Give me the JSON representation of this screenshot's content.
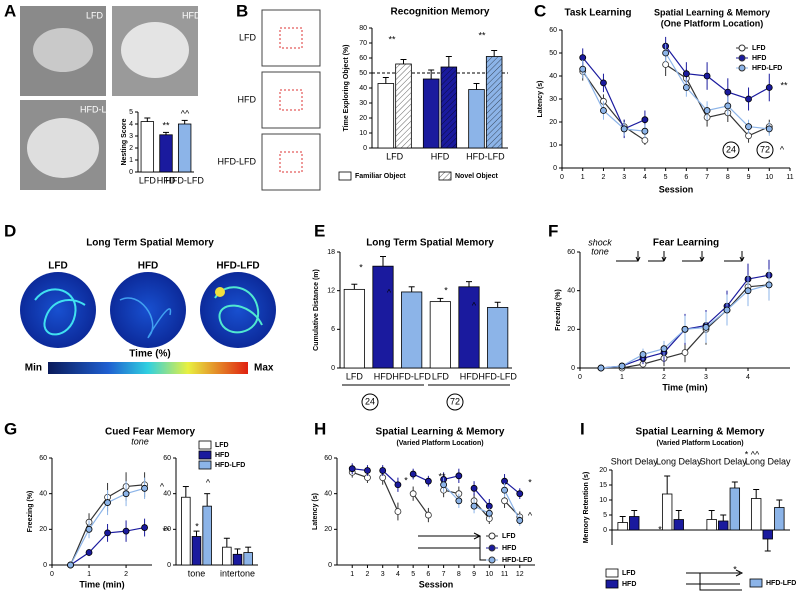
{
  "panel_labels": [
    "A",
    "B",
    "C",
    "D",
    "E",
    "F",
    "G",
    "H",
    "I"
  ],
  "panel_a": {
    "image_labels": [
      "LFD",
      "HFD",
      "HFD-LFD"
    ]
  },
  "panel_b": {
    "image_labels": [
      "LFD",
      "HFD",
      "HFD-LFD"
    ]
  },
  "panel_d": {
    "title": "Long Term Spatial Memory",
    "image_labels": [
      "LFD",
      "HFD",
      "HFD-LFD"
    ],
    "colorbar_label": "Time (%)",
    "min": "Min",
    "max": "Max"
  },
  "chart_data": [
    {
      "type": "bar",
      "ylabel": "Nesting Score",
      "categories": [
        "LFD",
        "HFD",
        "HFD-LFD"
      ],
      "ylim": [
        0,
        5
      ],
      "yticks": [
        0,
        1,
        2,
        3,
        4,
        5
      ],
      "series": [
        {
          "name": "Nesting Score",
          "colors": [
            "#ffffff",
            "#1a1a9e",
            "#8cb4e8"
          ],
          "values": [
            4.2,
            3.1,
            4.0
          ],
          "errors": [
            0.3,
            0.2,
            0.3
          ]
        }
      ],
      "annotations": [
        "**",
        "^^"
      ]
    },
    {
      "type": "bar",
      "title": "Recognition Memory",
      "ylabel": "Time Exploring Object (%)",
      "categories": [
        "LFD",
        "HFD",
        "HFD-LFD"
      ],
      "ylim": [
        0,
        80
      ],
      "yticks": [
        0,
        10,
        20,
        30,
        40,
        50,
        60,
        70,
        80
      ],
      "reference_line": 50,
      "series": [
        {
          "name": "Familiar Object",
          "color": "#ffffff",
          "colors": [
            "#ffffff",
            "#1a1a9e",
            "#8cb4e8"
          ],
          "values": [
            43,
            46,
            39
          ],
          "errors": [
            4,
            6,
            4
          ]
        },
        {
          "name": "Novel Object",
          "color": "#ffffff",
          "pattern": "hatch",
          "colors": [
            "#ffffff",
            "#1a1a9e",
            "#8cb4e8"
          ],
          "values": [
            56,
            54,
            61
          ],
          "errors": [
            3,
            7,
            4
          ]
        }
      ],
      "annotations": [
        "**",
        "**"
      ]
    },
    {
      "type": "line",
      "title": "Task Learning",
      "xlabel": "Session",
      "ylabel": "Latency (s)",
      "x": [
        1,
        2,
        3,
        4,
        null,
        5,
        6,
        7,
        8,
        9,
        10
      ],
      "xlim": [
        0,
        11
      ],
      "xticks": [
        0,
        1,
        2,
        3,
        4,
        5,
        6,
        7,
        8,
        9,
        10,
        11
      ],
      "ylim": [
        0,
        60
      ],
      "yticks": [
        0,
        10,
        20,
        30,
        40,
        50,
        60
      ],
      "series": [
        {
          "name": "LFD",
          "color": "#ffffff",
          "values": [
            42,
            29,
            18,
            12,
            null,
            45,
            39,
            22,
            24,
            14,
            18
          ],
          "errors": [
            4,
            3,
            3,
            2,
            null,
            5,
            4,
            4,
            4,
            3,
            3
          ]
        },
        {
          "name": "HFD",
          "color": "#1a1a9e",
          "values": [
            48,
            37,
            17,
            21,
            null,
            53,
            41,
            40,
            33,
            30,
            35
          ],
          "errors": [
            4,
            4,
            4,
            4,
            null,
            4,
            5,
            6,
            6,
            5,
            6
          ]
        },
        {
          "name": "HFD-LFD",
          "color": "#8cb4e8",
          "values": [
            43,
            25,
            17,
            16,
            null,
            50,
            35,
            25,
            27,
            18,
            17
          ],
          "errors": [
            4,
            4,
            3,
            3,
            null,
            4,
            4,
            4,
            4,
            3,
            3
          ]
        }
      ],
      "annotations": [
        "Spatial Learning & Memory",
        "(One Platform Location)",
        "**",
        "^",
        "24",
        "72"
      ]
    },
    {
      "type": "bar",
      "title": "Long Term Spatial Memory",
      "ylabel": "Cumulative Distance (m)",
      "categories": [
        "LFD",
        "HFD",
        "HFD-LFD",
        "LFD",
        "HFD",
        "HFD-LFD"
      ],
      "ylim": [
        0,
        18
      ],
      "yticks": [
        0,
        6,
        12,
        18
      ],
      "series": [
        {
          "name": "Cumulative Distance",
          "colors": [
            "#ffffff",
            "#1a1a9e",
            "#8cb4e8",
            "#ffffff",
            "#1a1a9e",
            "#8cb4e8"
          ],
          "values": [
            12.2,
            15.8,
            11.8,
            10.3,
            12.6,
            9.4
          ],
          "errors": [
            0.8,
            1.5,
            0.8,
            0.5,
            0.8,
            0.8
          ]
        }
      ],
      "annotations": [
        "*",
        "^",
        "*",
        "^",
        "24",
        "72"
      ]
    },
    {
      "type": "line",
      "title": "Fear Learning",
      "xlabel": "Time (min)",
      "ylabel": "Freezing (%)",
      "x": [
        0.5,
        1,
        1.5,
        2,
        2.5,
        3,
        3.5,
        4,
        4.5
      ],
      "xlim": [
        0,
        5
      ],
      "xticks": [
        0,
        1,
        2,
        3,
        4
      ],
      "ylim": [
        0,
        60
      ],
      "yticks": [
        0,
        20,
        40,
        60
      ],
      "series": [
        {
          "name": "LFD",
          "color": "#ffffff",
          "values": [
            0,
            0,
            2,
            5,
            8,
            20,
            30,
            42,
            43
          ],
          "errors": [
            0,
            1,
            2,
            4,
            5,
            8,
            8,
            8,
            8
          ]
        },
        {
          "name": "HFD",
          "color": "#1a1a9e",
          "values": [
            0,
            1,
            5,
            8,
            20,
            22,
            32,
            46,
            48
          ],
          "errors": [
            0,
            1,
            3,
            5,
            8,
            8,
            8,
            8,
            8
          ]
        },
        {
          "name": "HFD-LFD",
          "color": "#8cb4e8",
          "values": [
            0,
            1,
            7,
            10,
            20,
            21,
            30,
            40,
            43
          ],
          "errors": [
            0,
            1,
            3,
            4,
            7,
            8,
            8,
            8,
            8
          ]
        }
      ],
      "annotations": [
        "shock",
        "tone"
      ]
    },
    {
      "type": "line",
      "title": "Cued Fear Memory",
      "xlabel": "Time (min)",
      "ylabel": "Freezing (%)",
      "x": [
        0.5,
        1,
        1.5,
        2,
        2.5
      ],
      "xlim": [
        0,
        2.7
      ],
      "xticks": [
        0,
        1,
        2
      ],
      "ylim": [
        0,
        60
      ],
      "yticks": [
        0,
        20,
        40,
        60
      ],
      "series": [
        {
          "name": "LFD",
          "color": "#ffffff",
          "values": [
            0,
            24,
            38,
            44,
            45
          ],
          "errors": [
            0,
            5,
            8,
            8,
            7
          ]
        },
        {
          "name": "HFD",
          "color": "#1a1a9e",
          "values": [
            0,
            7,
            18,
            19,
            21
          ],
          "errors": [
            0,
            2,
            5,
            6,
            5
          ]
        },
        {
          "name": "HFD-LFD",
          "color": "#8cb4e8",
          "values": [
            0,
            20,
            35,
            40,
            43
          ],
          "errors": [
            0,
            5,
            7,
            7,
            6
          ]
        }
      ],
      "annotations": [
        "tone",
        "**",
        "^"
      ]
    },
    {
      "type": "bar",
      "categories": [
        "tone",
        "intertone"
      ],
      "ylim": [
        0,
        60
      ],
      "yticks": [
        0,
        20,
        40,
        60
      ],
      "series": [
        {
          "name": "LFD",
          "color": "#ffffff",
          "values": [
            38,
            10
          ],
          "errors": [
            6,
            5
          ]
        },
        {
          "name": "HFD",
          "color": "#1a1a9e",
          "values": [
            16,
            6
          ],
          "errors": [
            3,
            3
          ]
        },
        {
          "name": "HFD-LFD",
          "color": "#8cb4e8",
          "values": [
            33,
            7
          ],
          "errors": [
            7,
            3
          ]
        }
      ],
      "annotations": [
        "*",
        "^"
      ]
    },
    {
      "type": "line",
      "title": "Spatial Learning & Memory",
      "subtitle": "(Varied Platform Location)",
      "xlabel": "Session",
      "ylabel": "Latency (s)",
      "x": [
        1,
        2,
        null,
        3,
        4,
        null,
        5,
        6,
        null,
        7,
        8,
        null,
        9,
        10,
        null,
        11,
        12
      ],
      "xlim": [
        0,
        13
      ],
      "xticks": [
        1,
        2,
        3,
        4,
        5,
        6,
        7,
        8,
        9,
        10,
        11,
        12
      ],
      "ylim": [
        0,
        60
      ],
      "yticks": [
        0,
        20,
        40,
        60
      ],
      "series": [
        {
          "name": "LFD",
          "color": "#ffffff",
          "values": [
            52,
            49,
            null,
            49,
            30,
            null,
            40,
            28,
            null,
            42,
            40,
            null,
            36,
            26,
            null,
            36,
            27
          ],
          "errors": [
            3,
            3,
            null,
            4,
            5,
            null,
            4,
            4,
            null,
            4,
            4,
            null,
            4,
            3,
            null,
            4,
            3
          ]
        },
        {
          "name": "HFD",
          "color": "#1a1a9e",
          "values": [
            54,
            53,
            null,
            53,
            45,
            null,
            51,
            47,
            null,
            48,
            50,
            null,
            43,
            33,
            null,
            47,
            40
          ],
          "errors": [
            3,
            3,
            null,
            3,
            4,
            null,
            3,
            3,
            null,
            4,
            4,
            null,
            4,
            4,
            null,
            4,
            3
          ]
        },
        {
          "name": "HFD-LFD",
          "color": "#8cb4e8",
          "values": [
            null,
            null,
            null,
            null,
            null,
            null,
            null,
            null,
            null,
            45,
            36,
            null,
            33,
            29,
            null,
            42,
            25
          ],
          "errors": [
            null,
            null,
            null,
            null,
            null,
            null,
            null,
            null,
            null,
            4,
            4,
            null,
            4,
            3,
            null,
            4,
            3
          ]
        }
      ],
      "annotations": [
        "*",
        "**",
        "*",
        "^"
      ]
    },
    {
      "type": "bar",
      "title": "Spatial Learning & Memory",
      "subtitle": "(Varied Platform Location)",
      "ylabel": "Memory Retention (s)",
      "categories": [
        "Short Delay",
        "Long Delay",
        "Short Delay",
        "Long Delay"
      ],
      "ylim": [
        -5,
        20
      ],
      "yticks": [
        0,
        5,
        10,
        15,
        20
      ],
      "series": [
        {
          "name": "LFD",
          "color": "#ffffff",
          "values": [
            2.5,
            12,
            3.5,
            10.5
          ],
          "errors": [
            2,
            6,
            3,
            3
          ]
        },
        {
          "name": "HFD",
          "color": "#1a1a9e",
          "values": [
            4.5,
            3.5,
            3,
            -3
          ],
          "errors": [
            2,
            3,
            2,
            4
          ]
        },
        {
          "name": "HFD-LFD",
          "color": "#8cb4e8",
          "values": [
            null,
            null,
            14,
            7.5
          ],
          "errors": [
            null,
            null,
            2,
            2.5
          ]
        }
      ],
      "annotations": [
        "*",
        "* ^^",
        "*"
      ]
    }
  ]
}
